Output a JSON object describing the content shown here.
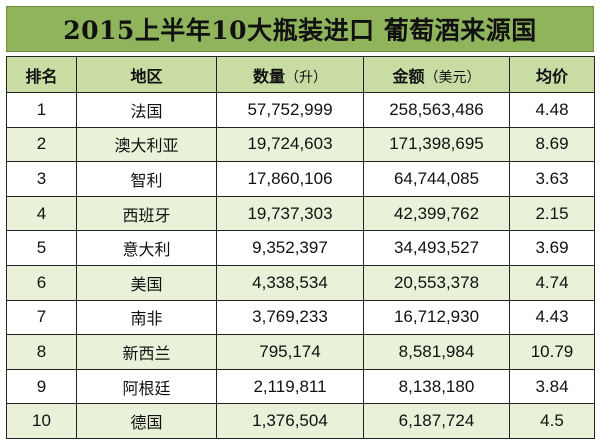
{
  "title": "2015上半年10大瓶装进口 葡萄酒来源国",
  "headers": {
    "rank": "排名",
    "region": "地区",
    "volume_label": "数量",
    "volume_unit": "（升）",
    "amount_label": "金额",
    "amount_unit": "（美元）",
    "avg_price": "均价"
  },
  "rows": [
    {
      "rank": "1",
      "region": "法国",
      "volume": "57,752,999",
      "amount": "258,563,486",
      "avg": "4.48"
    },
    {
      "rank": "2",
      "region": "澳大利亚",
      "volume": "19,724,603",
      "amount": "171,398,695",
      "avg": "8.69"
    },
    {
      "rank": "3",
      "region": "智利",
      "volume": "17,860,106",
      "amount": "64,744,085",
      "avg": "3.63"
    },
    {
      "rank": "4",
      "region": "西班牙",
      "volume": "19,737,303",
      "amount": "42,399,762",
      "avg": "2.15"
    },
    {
      "rank": "5",
      "region": "意大利",
      "volume": "9,352,397",
      "amount": "34,493,527",
      "avg": "3.69"
    },
    {
      "rank": "6",
      "region": "美国",
      "volume": "4,338,534",
      "amount": "20,553,378",
      "avg": "4.74"
    },
    {
      "rank": "7",
      "region": "南非",
      "volume": "3,769,233",
      "amount": "16,712,930",
      "avg": "4.43"
    },
    {
      "rank": "8",
      "region": "新西兰",
      "volume": "795,174",
      "amount": "8,581,984",
      "avg": "10.79"
    },
    {
      "rank": "9",
      "region": "阿根廷",
      "volume": "2,119,811",
      "amount": "8,138,180",
      "avg": "3.84"
    },
    {
      "rank": "10",
      "region": "德国",
      "volume": "1,376,504",
      "amount": "6,187,724",
      "avg": "4.5"
    }
  ],
  "colors": {
    "title_bg": "#8fb45c",
    "header_bg": "#c8dca4",
    "alt_row_bg": "#e9f1d8",
    "border": "#222222"
  }
}
